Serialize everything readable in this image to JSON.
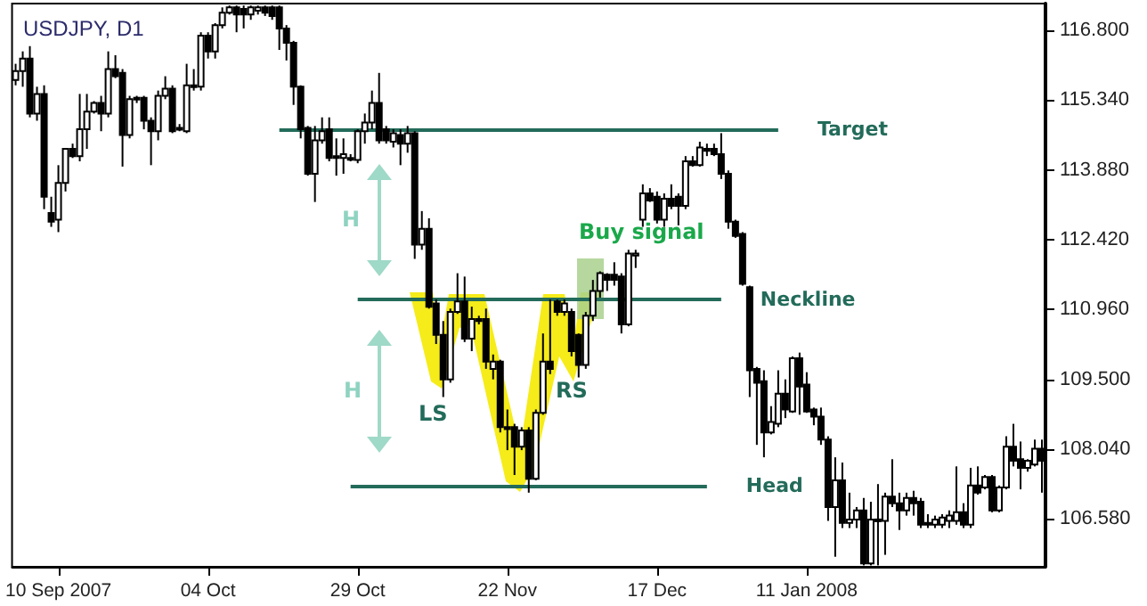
{
  "chart_data": {
    "type": "candlestick",
    "title": "USDJPY, D1",
    "categories": [
      null,
      null,
      null,
      null,
      null,
      null,
      "10 Sep 2007",
      null,
      null,
      null,
      null,
      null,
      null,
      null,
      null,
      null,
      null,
      null,
      null,
      null,
      null,
      null,
      null,
      null,
      null,
      null,
      null,
      "04 Oct",
      null,
      null,
      null,
      null,
      null,
      null,
      null,
      null,
      null,
      null,
      null,
      null,
      null,
      null,
      null,
      null,
      null,
      null,
      null,
      null,
      "29 Oct",
      null,
      null,
      null,
      null,
      null,
      null,
      null,
      null,
      null,
      null,
      null,
      null,
      null,
      null,
      null,
      null,
      null,
      null,
      null,
      null,
      "22 Nov",
      null,
      null,
      null,
      null,
      null,
      null,
      null,
      null,
      null,
      null,
      null,
      null,
      null,
      null,
      null,
      null,
      null,
      null,
      null,
      null,
      "17 Dec",
      null,
      null,
      null,
      null,
      null,
      null,
      null,
      null,
      null,
      null,
      null,
      null,
      null,
      null,
      null,
      null,
      null,
      null,
      null,
      null,
      "11 Jan 2008",
      null,
      null,
      null,
      null,
      null,
      null,
      null,
      null,
      null,
      null,
      null,
      null,
      null,
      null,
      null,
      null,
      null,
      null,
      null,
      null,
      null,
      null,
      null,
      null,
      null,
      null,
      null,
      null,
      null,
      null,
      null,
      null,
      null
    ],
    "ohlc": [
      [
        115.76,
        116.1,
        115.65,
        115.95
      ],
      [
        115.95,
        116.36,
        115.62,
        116.21
      ],
      [
        116.21,
        116.47,
        114.98,
        115.06
      ],
      [
        115.06,
        115.62,
        114.91,
        115.47
      ],
      [
        115.47,
        115.65,
        113.06,
        113.32
      ],
      [
        112.98,
        113.32,
        112.69,
        112.8
      ],
      [
        112.84,
        113.98,
        112.58,
        113.61
      ],
      [
        113.61,
        114.32,
        113.43,
        114.32
      ],
      [
        114.32,
        114.43,
        114.13,
        114.17
      ],
      [
        114.17,
        115.47,
        114.06,
        114.73
      ],
      [
        114.73,
        115.47,
        114.32,
        115.1
      ],
      [
        115.1,
        115.32,
        115.06,
        115.28
      ],
      [
        115.28,
        115.43,
        114.69,
        115.06
      ],
      [
        115.06,
        116.36,
        114.98,
        115.99
      ],
      [
        115.99,
        116.28,
        115.8,
        115.84
      ],
      [
        115.91,
        115.99,
        113.95,
        114.61
      ],
      [
        114.61,
        115.43,
        114.54,
        115.36
      ],
      [
        115.39,
        115.43,
        115.28,
        115.36
      ],
      [
        115.39,
        115.43,
        114.73,
        114.91
      ],
      [
        114.91,
        114.98,
        113.98,
        114.69
      ],
      [
        114.69,
        115.54,
        114.5,
        115.43
      ],
      [
        115.43,
        115.84,
        115.36,
        115.58
      ],
      [
        115.58,
        115.65,
        114.65,
        114.69
      ],
      [
        114.73,
        114.84,
        114.69,
        114.76
      ],
      [
        114.69,
        116.1,
        114.65,
        115.65
      ],
      [
        115.65,
        115.99,
        115.54,
        115.62
      ],
      [
        115.62,
        116.76,
        115.54,
        116.69
      ],
      [
        116.69,
        116.76,
        116.21,
        116.36
      ],
      [
        116.36,
        116.95,
        116.21,
        116.91
      ],
      [
        116.91,
        117.28,
        116.84,
        117.17
      ],
      [
        117.17,
        117.32,
        117.13,
        117.28
      ],
      [
        117.28,
        117.32,
        116.76,
        117.13
      ],
      [
        117.25,
        117.32,
        116.84,
        117.13
      ],
      [
        117.13,
        117.32,
        117.02,
        117.28
      ],
      [
        117.21,
        117.32,
        117.13,
        117.28
      ],
      [
        117.28,
        117.32,
        117.1,
        117.17
      ],
      [
        117.28,
        117.32,
        117.02,
        117.1
      ],
      [
        117.28,
        117.32,
        116.39,
        116.84
      ],
      [
        116.84,
        116.91,
        116.17,
        116.54
      ],
      [
        116.54,
        116.58,
        115.24,
        115.62
      ],
      [
        115.62,
        115.65,
        114.54,
        114.73
      ],
      [
        114.76,
        114.8,
        113.76,
        113.8
      ],
      [
        113.8,
        114.8,
        113.21,
        114.5
      ],
      [
        114.5,
        114.98,
        114.43,
        114.69
      ],
      [
        114.73,
        114.98,
        114.06,
        114.13
      ],
      [
        114.17,
        114.54,
        113.76,
        114.13
      ],
      [
        114.13,
        114.54,
        113.8,
        114.21
      ],
      [
        114.13,
        114.21,
        114.06,
        114.11
      ],
      [
        114.09,
        114.73,
        114.02,
        114.69
      ],
      [
        114.69,
        115.06,
        114.43,
        114.87
      ],
      [
        114.87,
        115.54,
        114.73,
        115.28
      ],
      [
        115.28,
        115.91,
        114.43,
        114.5
      ],
      [
        114.73,
        114.8,
        114.43,
        114.5
      ],
      [
        114.47,
        114.73,
        114.35,
        114.65
      ],
      [
        114.61,
        114.73,
        113.98,
        114.43
      ],
      [
        114.43,
        114.8,
        114.24,
        114.65
      ],
      [
        114.65,
        114.69,
        112.02,
        112.32
      ],
      [
        112.32,
        113.02,
        112.21,
        112.65
      ],
      [
        112.65,
        112.87,
        110.98,
        111.02
      ],
      [
        111.09,
        111.17,
        110.24,
        110.43
      ],
      [
        110.43,
        110.72,
        109.13,
        109.5
      ],
      [
        109.5,
        110.98,
        109.43,
        110.91
      ],
      [
        110.91,
        111.72,
        110.87,
        111.13
      ],
      [
        111.13,
        111.65,
        110.28,
        110.35
      ],
      [
        110.35,
        111.02,
        110.09,
        110.76
      ],
      [
        110.76,
        110.83,
        110.65,
        110.72
      ],
      [
        110.76,
        110.98,
        109.72,
        109.87
      ],
      [
        109.72,
        110.02,
        109.5,
        109.87
      ],
      [
        109.87,
        109.91,
        108.39,
        108.5
      ],
      [
        108.5,
        108.87,
        108.02,
        108.46
      ],
      [
        108.5,
        108.57,
        107.5,
        108.09
      ],
      [
        108.09,
        108.5,
        108.02,
        108.43
      ],
      [
        108.43,
        108.5,
        107.13,
        107.42
      ],
      [
        107.42,
        108.87,
        107.39,
        108.8
      ],
      [
        108.8,
        110.46,
        108.76,
        109.87
      ],
      [
        109.87,
        111.17,
        109.61,
        109.72
      ],
      [
        111.13,
        111.17,
        110.83,
        110.91
      ],
      [
        110.91,
        111.17,
        110.83,
        111.09
      ],
      [
        110.91,
        110.98,
        109.98,
        110.09
      ],
      [
        110.43,
        110.46,
        109.54,
        109.8
      ],
      [
        109.8,
        110.91,
        109.72,
        110.83
      ],
      [
        110.83,
        111.58,
        110.72,
        111.35
      ],
      [
        111.35,
        111.76,
        111.21,
        111.72
      ],
      [
        111.69,
        111.72,
        111.35,
        111.58
      ],
      [
        111.69,
        111.95,
        111.46,
        111.58
      ],
      [
        111.65,
        111.72,
        110.46,
        110.65
      ],
      [
        110.65,
        112.21,
        110.61,
        112.13
      ],
      [
        112.09,
        112.21,
        111.83,
        112.13
      ],
      [
        112.84,
        113.58,
        112.69,
        113.39
      ],
      [
        113.39,
        113.5,
        113.21,
        113.24
      ],
      [
        113.32,
        113.43,
        112.76,
        112.84
      ],
      [
        112.84,
        113.39,
        112.69,
        113.28
      ],
      [
        113.28,
        113.58,
        113.06,
        113.13
      ],
      [
        113.32,
        113.39,
        112.72,
        113.13
      ],
      [
        113.13,
        114.17,
        113.06,
        114.06
      ],
      [
        114.06,
        114.17,
        113.95,
        113.98
      ],
      [
        113.98,
        114.47,
        113.95,
        114.35
      ],
      [
        114.32,
        114.43,
        114.17,
        114.28
      ],
      [
        114.32,
        114.43,
        114.17,
        114.21
      ],
      [
        114.21,
        114.65,
        113.69,
        113.8
      ],
      [
        113.8,
        113.87,
        112.65,
        112.8
      ],
      [
        112.8,
        112.84,
        112.46,
        112.5
      ],
      [
        112.54,
        112.58,
        111.46,
        111.5
      ],
      [
        111.43,
        111.46,
        109.13,
        109.69
      ],
      [
        109.72,
        109.76,
        108.13,
        109.43
      ],
      [
        109.46,
        109.69,
        107.87,
        108.39
      ],
      [
        108.39,
        108.94,
        108.35,
        108.61
      ],
      [
        108.57,
        109.69,
        108.5,
        109.2
      ],
      [
        109.2,
        109.5,
        108.69,
        108.87
      ],
      [
        108.83,
        109.98,
        108.8,
        109.94
      ],
      [
        109.94,
        110.06,
        108.76,
        109.35
      ],
      [
        109.39,
        109.65,
        108.8,
        108.83
      ],
      [
        108.87,
        108.91,
        108.54,
        108.72
      ],
      [
        108.72,
        108.91,
        108.13,
        108.24
      ],
      [
        108.24,
        108.31,
        106.54,
        106.83
      ],
      [
        106.83,
        107.87,
        105.79,
        107.39
      ],
      [
        107.39,
        107.76,
        106.39,
        106.5
      ],
      [
        106.5,
        107.13,
        106.39,
        106.57
      ],
      [
        106.57,
        106.83,
        106.39,
        106.76
      ],
      [
        106.76,
        107.02,
        105.61,
        105.65
      ],
      [
        105.65,
        106.94,
        105.61,
        106.57
      ],
      [
        106.54,
        107.31,
        105.61,
        106.57
      ],
      [
        106.54,
        107.13,
        105.83,
        107.05
      ],
      [
        107.05,
        107.83,
        106.83,
        106.91
      ],
      [
        106.91,
        107.13,
        106.35,
        106.76
      ],
      [
        106.76,
        107.13,
        106.65,
        107.02
      ],
      [
        107.02,
        107.17,
        106.65,
        106.91
      ],
      [
        106.94,
        107.02,
        106.39,
        106.46
      ],
      [
        106.5,
        106.68,
        106.39,
        106.46
      ],
      [
        106.46,
        106.65,
        106.39,
        106.57
      ],
      [
        106.46,
        106.68,
        106.39,
        106.61
      ],
      [
        106.54,
        106.76,
        106.39,
        106.65
      ],
      [
        106.54,
        107.68,
        106.46,
        106.72
      ],
      [
        106.72,
        106.91,
        106.39,
        106.46
      ],
      [
        106.46,
        107.65,
        106.39,
        107.28
      ],
      [
        107.28,
        107.68,
        107.09,
        107.13
      ],
      [
        107.24,
        107.5,
        107.2,
        107.46
      ],
      [
        107.46,
        107.5,
        106.72,
        106.76
      ],
      [
        106.76,
        107.28,
        106.72,
        107.24
      ],
      [
        107.24,
        108.31,
        107.2,
        108.09
      ],
      [
        108.09,
        108.57,
        107.68,
        107.8
      ],
      [
        107.83,
        108.2,
        107.2,
        107.65
      ],
      [
        107.65,
        107.83,
        107.57,
        107.8
      ],
      [
        107.72,
        108.24,
        107.68,
        108.05
      ],
      [
        108.05,
        108.24,
        107.13,
        107.8
      ]
    ],
    "ylim": [
      105.58,
      117.36
    ],
    "yticks": [
      {
        "value": 106.58,
        "label": "106.580"
      },
      {
        "value": 108.04,
        "label": "108.040"
      },
      {
        "value": 109.5,
        "label": "109.500"
      },
      {
        "value": 110.96,
        "label": "110.960"
      },
      {
        "value": 112.42,
        "label": "112.420"
      },
      {
        "value": 113.88,
        "label": "113.880"
      },
      {
        "value": 115.34,
        "label": "115.340"
      },
      {
        "value": 116.8,
        "label": "116.800"
      }
    ],
    "ref_lines": [
      {
        "axis": "y",
        "value": 114.74,
        "label": "Target",
        "color": "#236b5a"
      },
      {
        "axis": "y",
        "value": 111.18,
        "label": "Neckline",
        "color": "#236b5a"
      },
      {
        "axis": "y",
        "value": 107.28,
        "label": "Head",
        "color": "#236b5a"
      }
    ],
    "annotations": [
      "H",
      "H",
      "LS",
      "RS",
      "Buy signal"
    ],
    "grid": false
  }
}
